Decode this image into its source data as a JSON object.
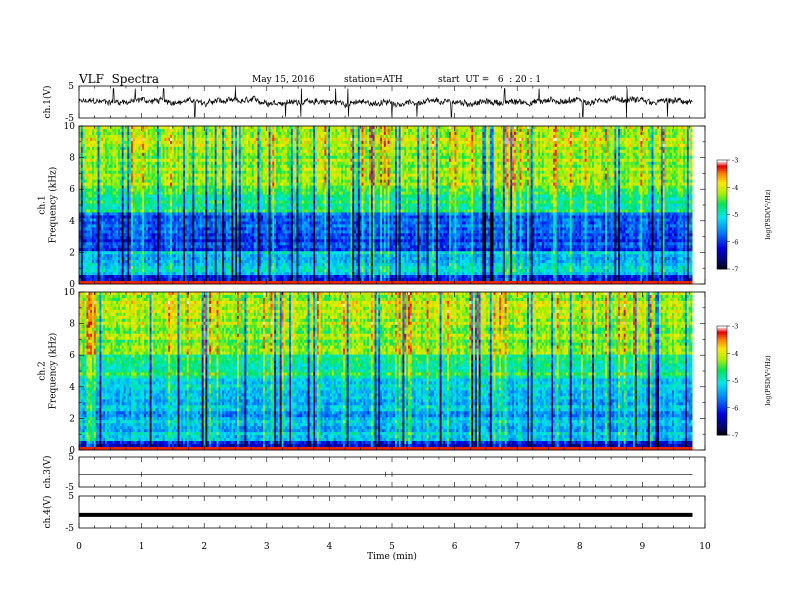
{
  "header": {
    "title": "VLF  Spectra",
    "date": "May 15, 2016",
    "station": "station=ATH",
    "start": "start  UT =   6  : 20 : 1"
  },
  "chart_data": {
    "type": "line",
    "x_axis": {
      "label": "Time  (min)",
      "range": [
        0,
        10
      ],
      "ticks": [
        "0",
        "1",
        "2",
        "3",
        "4",
        "5",
        "6",
        "7",
        "8",
        "9",
        "10"
      ]
    },
    "waveform_panels": [
      {
        "id": "ch1",
        "ylabel": "ch.1(V)",
        "yrange": [
          -5,
          5
        ],
        "ticks": [
          "5",
          "-5"
        ],
        "signal": "noisy",
        "level": 0.0,
        "spike_times": [
          0.55,
          0.9,
          1.35,
          1.85,
          2.5,
          3.3,
          3.55,
          4.1,
          4.3,
          5.0,
          5.4,
          5.95,
          6.8,
          7.35,
          8.05,
          8.75,
          9.4
        ]
      },
      {
        "id": "ch3",
        "ylabel": "ch.3(V)",
        "yrange": [
          -5,
          5
        ],
        "ticks": [
          "5",
          "-5"
        ],
        "signal": "flat",
        "level": -0.9,
        "spike_times": [
          1.0,
          4.9,
          5.0
        ]
      },
      {
        "id": "ch4",
        "ylabel": "ch.4(V)",
        "yrange": [
          -5,
          5
        ],
        "ticks": [
          "5",
          "-5"
        ],
        "signal": "thick",
        "level": -0.9
      }
    ],
    "spectrogram_panels": [
      {
        "id": "ch1",
        "ylabel": "ch.1\nFrequency  (kHz)",
        "yrange": [
          0,
          10
        ],
        "ticks": [
          "0",
          "2",
          "4",
          "6",
          "8",
          "10"
        ]
      },
      {
        "id": "ch2",
        "ylabel": "ch.2\nFrequency  (kHz)",
        "yrange": [
          0,
          10
        ],
        "ticks": [
          "0",
          "2",
          "4",
          "6",
          "8",
          "10"
        ]
      }
    ],
    "colorbar": {
      "label": "log(PSD(V²/Hz)",
      "range": [
        -7,
        -3
      ],
      "ticks": [
        "-3",
        "-4",
        "-5",
        "-6",
        "-7"
      ]
    },
    "grid": false
  }
}
